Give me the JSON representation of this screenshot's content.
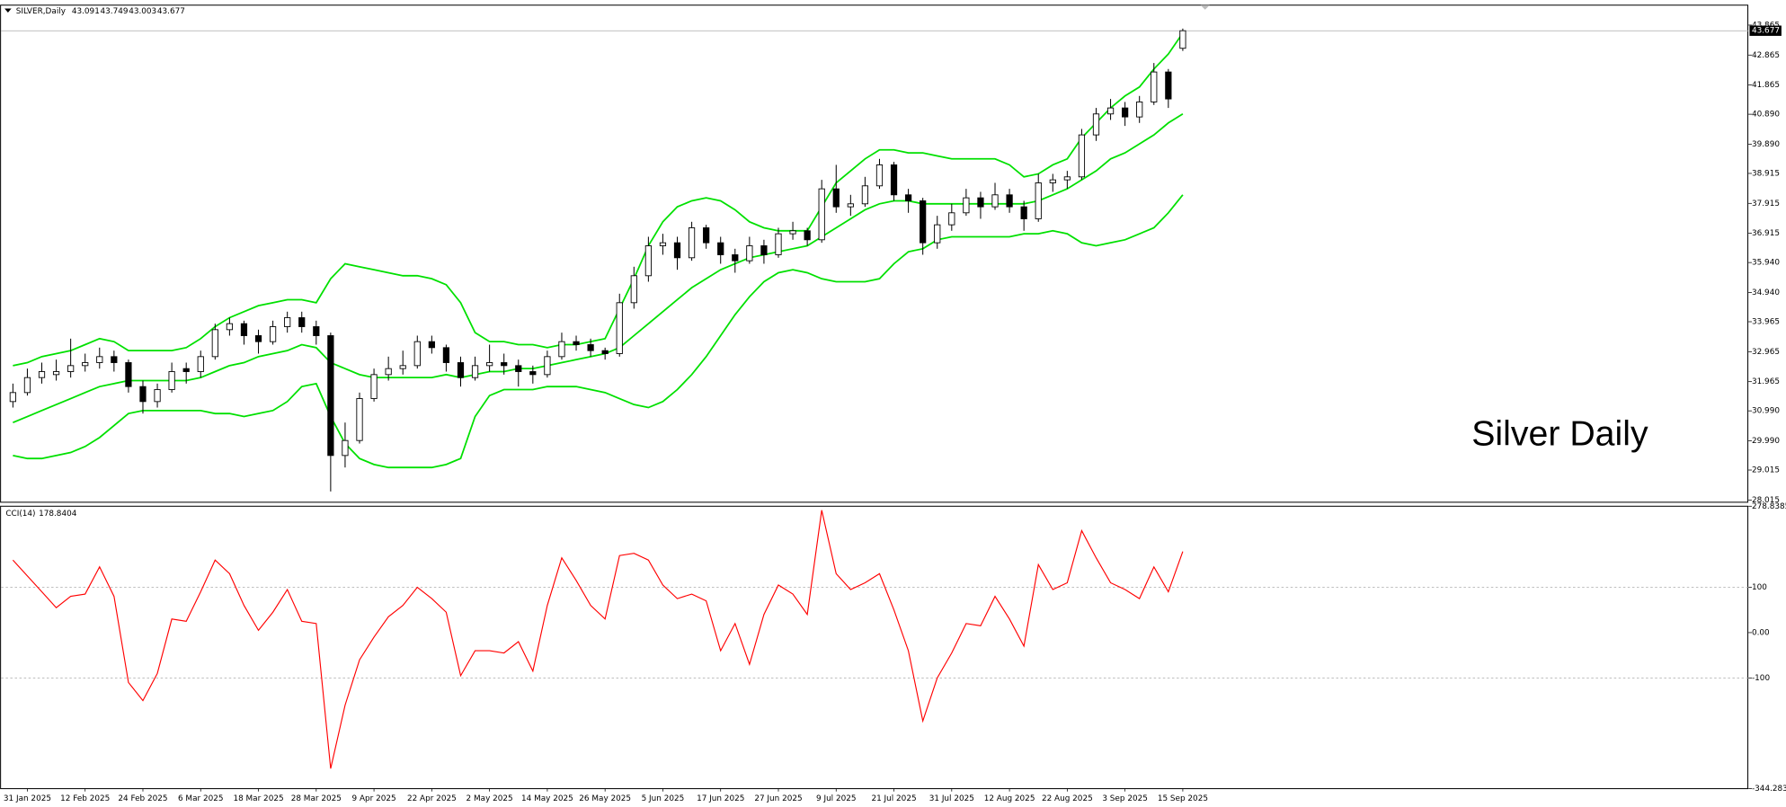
{
  "chart_data": [
    {
      "type": "candlestick",
      "symbol": "SILVER,Daily",
      "annotation": "Silver Daily",
      "up_color": "#ffffff",
      "down_color": "#000000",
      "ylim": [
        27.94,
        44.55
      ],
      "yticks": [
        28.015,
        29.015,
        {
          "value": 29.99,
          "label": "29.990"
        },
        {
          "value": 30.99,
          "label": "30.990"
        },
        31.965,
        32.965,
        33.965,
        {
          "value": 34.94,
          "label": "34.940"
        },
        {
          "value": 35.94,
          "label": "35.940"
        },
        36.915,
        37.915,
        38.915,
        {
          "value": 39.89,
          "label": "39.890"
        },
        {
          "value": 40.89,
          "label": "40.890"
        },
        41.865,
        42.865,
        43.865
      ],
      "categories": [
        null,
        "31 Jan 2025",
        null,
        null,
        null,
        "12 Feb 2025",
        null,
        null,
        null,
        "24 Feb 2025",
        null,
        null,
        null,
        "6 Mar 2025",
        null,
        null,
        null,
        "18 Mar 2025",
        null,
        null,
        null,
        "28 Mar 2025",
        null,
        null,
        null,
        "9 Apr 2025",
        null,
        null,
        null,
        "22 Apr 2025",
        null,
        null,
        null,
        "2 May 2025",
        null,
        null,
        null,
        "14 May 2025",
        null,
        null,
        null,
        "26 May 2025",
        null,
        null,
        null,
        "5 Jun 2025",
        null,
        null,
        null,
        "17 Jun 2025",
        null,
        null,
        null,
        "27 Jun 2025",
        null,
        null,
        null,
        "9 Jul 2025",
        null,
        null,
        null,
        "21 Jul 2025",
        null,
        null,
        null,
        "31 Jul 2025",
        null,
        null,
        null,
        "12 Aug 2025",
        null,
        null,
        null,
        "22 Aug 2025",
        null,
        null,
        null,
        "3 Sep 2025",
        null,
        null,
        null,
        "15 Sep 2025"
      ],
      "ohlc": [
        [
          31.3,
          31.9,
          31.1,
          31.6
        ],
        [
          31.6,
          32.4,
          31.5,
          32.1
        ],
        [
          32.1,
          32.6,
          31.9,
          32.3
        ],
        [
          32.2,
          32.7,
          32.0,
          32.3
        ],
        [
          32.3,
          33.4,
          32.1,
          32.5
        ],
        [
          32.5,
          32.9,
          32.3,
          32.6
        ],
        [
          32.6,
          33.1,
          32.4,
          32.8
        ],
        [
          32.8,
          33.0,
          32.3,
          32.6
        ],
        [
          32.6,
          32.7,
          31.6,
          31.8
        ],
        [
          31.8,
          32.0,
          30.9,
          31.3
        ],
        [
          31.3,
          31.9,
          31.1,
          31.7
        ],
        [
          31.7,
          32.6,
          31.6,
          32.3
        ],
        [
          32.4,
          32.6,
          31.9,
          32.3
        ],
        [
          32.3,
          33.0,
          32.1,
          32.8
        ],
        [
          32.8,
          33.9,
          32.7,
          33.7
        ],
        [
          33.7,
          34.1,
          33.5,
          33.9
        ],
        [
          33.9,
          34.0,
          33.2,
          33.5
        ],
        [
          33.5,
          33.7,
          32.9,
          33.3
        ],
        [
          33.3,
          34.0,
          33.2,
          33.8
        ],
        [
          33.8,
          34.3,
          33.6,
          34.1
        ],
        [
          34.1,
          34.3,
          33.6,
          33.8
        ],
        [
          33.8,
          34.0,
          33.2,
          33.5
        ],
        [
          33.5,
          33.6,
          28.3,
          29.5
        ],
        [
          29.5,
          30.6,
          29.1,
          30.0
        ],
        [
          30.0,
          31.6,
          29.9,
          31.4
        ],
        [
          31.4,
          32.4,
          31.3,
          32.2
        ],
        [
          32.2,
          32.8,
          32.0,
          32.4
        ],
        [
          32.4,
          33.0,
          32.2,
          32.5
        ],
        [
          32.5,
          33.5,
          32.4,
          33.3
        ],
        [
          33.3,
          33.5,
          32.9,
          33.1
        ],
        [
          33.1,
          33.2,
          32.3,
          32.6
        ],
        [
          32.6,
          32.8,
          31.8,
          32.1
        ],
        [
          32.1,
          32.8,
          32.0,
          32.5
        ],
        [
          32.5,
          33.2,
          32.3,
          32.6
        ],
        [
          32.6,
          32.9,
          32.2,
          32.5
        ],
        [
          32.5,
          32.7,
          31.8,
          32.3
        ],
        [
          32.3,
          32.5,
          31.9,
          32.2
        ],
        [
          32.2,
          33.0,
          32.1,
          32.8
        ],
        [
          32.8,
          33.6,
          32.7,
          33.3
        ],
        [
          33.3,
          33.5,
          33.0,
          33.2
        ],
        [
          33.2,
          33.4,
          32.8,
          33.0
        ],
        [
          33.0,
          33.1,
          32.7,
          32.9
        ],
        [
          32.9,
          34.9,
          32.8,
          34.6
        ],
        [
          34.6,
          35.8,
          34.4,
          35.5
        ],
        [
          35.5,
          36.8,
          35.3,
          36.5
        ],
        [
          36.5,
          36.9,
          36.2,
          36.6
        ],
        [
          36.6,
          36.8,
          35.7,
          36.1
        ],
        [
          36.1,
          37.3,
          36.0,
          37.1
        ],
        [
          37.1,
          37.2,
          36.4,
          36.6
        ],
        [
          36.6,
          36.8,
          35.9,
          36.2
        ],
        [
          36.2,
          36.4,
          35.6,
          36.0
        ],
        [
          36.0,
          36.8,
          35.9,
          36.5
        ],
        [
          36.5,
          36.7,
          35.9,
          36.2
        ],
        [
          36.2,
          37.1,
          36.1,
          36.9
        ],
        [
          36.9,
          37.3,
          36.7,
          37.0
        ],
        [
          37.0,
          37.1,
          36.5,
          36.7
        ],
        [
          36.7,
          38.7,
          36.6,
          38.4
        ],
        [
          38.4,
          39.2,
          37.6,
          37.8
        ],
        [
          37.8,
          38.2,
          37.5,
          37.9
        ],
        [
          37.9,
          38.8,
          37.8,
          38.5
        ],
        [
          38.5,
          39.4,
          38.4,
          39.2
        ],
        [
          39.2,
          39.3,
          38.0,
          38.2
        ],
        [
          38.2,
          38.4,
          37.6,
          38.0
        ],
        [
          38.0,
          38.1,
          36.2,
          36.6
        ],
        [
          36.6,
          37.5,
          36.4,
          37.2
        ],
        [
          37.2,
          37.9,
          37.0,
          37.6
        ],
        [
          37.6,
          38.4,
          37.5,
          38.1
        ],
        [
          38.1,
          38.3,
          37.4,
          37.8
        ],
        [
          37.8,
          38.6,
          37.7,
          38.2
        ],
        [
          38.2,
          38.4,
          37.6,
          37.8
        ],
        [
          37.8,
          38.0,
          37.0,
          37.4
        ],
        [
          37.4,
          38.9,
          37.3,
          38.6
        ],
        [
          38.6,
          38.9,
          38.3,
          38.7
        ],
        [
          38.7,
          39.0,
          38.4,
          38.8
        ],
        [
          38.8,
          40.4,
          38.7,
          40.2
        ],
        [
          40.2,
          41.1,
          40.0,
          40.9
        ],
        [
          40.9,
          41.4,
          40.7,
          41.1
        ],
        [
          41.1,
          41.3,
          40.5,
          40.8
        ],
        [
          40.8,
          41.5,
          40.6,
          41.3
        ],
        [
          41.3,
          42.6,
          41.2,
          42.3
        ],
        [
          42.3,
          42.4,
          41.1,
          41.4
        ],
        [
          43.091,
          43.749,
          43.003,
          43.677
        ]
      ],
      "bands": {
        "color": "#00e000",
        "upper": [
          32.5,
          32.6,
          32.8,
          32.9,
          33.0,
          33.2,
          33.4,
          33.3,
          33.0,
          33.0,
          33.0,
          33.0,
          33.1,
          33.4,
          33.8,
          34.1,
          34.3,
          34.5,
          34.6,
          34.7,
          34.7,
          34.6,
          35.4,
          35.9,
          35.8,
          35.7,
          35.6,
          35.5,
          35.5,
          35.4,
          35.2,
          34.6,
          33.6,
          33.3,
          33.3,
          33.2,
          33.2,
          33.1,
          33.2,
          33.2,
          33.3,
          33.4,
          34.4,
          35.4,
          36.5,
          37.3,
          37.8,
          38.0,
          38.1,
          38.0,
          37.7,
          37.3,
          37.1,
          37.0,
          37.0,
          37.0,
          37.8,
          38.6,
          39.0,
          39.4,
          39.7,
          39.7,
          39.6,
          39.6,
          39.5,
          39.4,
          39.4,
          39.4,
          39.4,
          39.2,
          38.8,
          38.9,
          39.2,
          39.4,
          40.1,
          40.6,
          41.1,
          41.5,
          41.8,
          42.4,
          42.9,
          43.6
        ],
        "middle": [
          30.6,
          30.8,
          31.0,
          31.2,
          31.4,
          31.6,
          31.8,
          31.9,
          32.0,
          32.0,
          32.0,
          32.0,
          32.0,
          32.1,
          32.3,
          32.5,
          32.6,
          32.8,
          32.9,
          33.0,
          33.2,
          33.1,
          32.6,
          32.4,
          32.2,
          32.1,
          32.1,
          32.1,
          32.1,
          32.1,
          32.2,
          32.1,
          32.2,
          32.3,
          32.3,
          32.4,
          32.4,
          32.5,
          32.6,
          32.7,
          32.8,
          32.9,
          33.1,
          33.5,
          33.9,
          34.3,
          34.7,
          35.1,
          35.4,
          35.7,
          35.9,
          36.1,
          36.2,
          36.3,
          36.4,
          36.5,
          36.8,
          37.1,
          37.4,
          37.7,
          37.9,
          38.0,
          38.0,
          37.9,
          37.9,
          37.9,
          37.9,
          37.9,
          37.9,
          37.9,
          37.9,
          38.0,
          38.2,
          38.4,
          38.7,
          39.0,
          39.4,
          39.6,
          39.9,
          40.2,
          40.6,
          40.9
        ],
        "lower": [
          29.5,
          29.4,
          29.4,
          29.5,
          29.6,
          29.8,
          30.1,
          30.5,
          30.9,
          31.0,
          31.0,
          31.0,
          31.0,
          31.0,
          30.9,
          30.9,
          30.8,
          30.9,
          31.0,
          31.3,
          31.8,
          31.9,
          30.8,
          29.9,
          29.4,
          29.2,
          29.1,
          29.1,
          29.1,
          29.1,
          29.2,
          29.4,
          30.8,
          31.5,
          31.7,
          31.7,
          31.7,
          31.8,
          31.8,
          31.8,
          31.7,
          31.6,
          31.4,
          31.2,
          31.1,
          31.3,
          31.7,
          32.2,
          32.8,
          33.5,
          34.2,
          34.8,
          35.3,
          35.6,
          35.7,
          35.6,
          35.4,
          35.3,
          35.3,
          35.3,
          35.4,
          35.9,
          36.3,
          36.4,
          36.7,
          36.8,
          36.8,
          36.8,
          36.8,
          36.8,
          36.9,
          36.9,
          37.0,
          36.9,
          36.6,
          36.5,
          36.6,
          36.7,
          36.9,
          37.1,
          37.6,
          38.2
        ]
      }
    },
    {
      "type": "line",
      "title": "CCI(14)",
      "color": "#ff0000",
      "ylim": [
        -344.283,
        278.8385
      ],
      "yticks": [
        278.8385,
        100,
        {
          "value": 0,
          "label": "0.00"
        },
        -100,
        -344.283
      ],
      "levels": [
        100,
        -100
      ],
      "values": [
        160,
        125,
        90,
        55,
        80,
        85,
        145,
        80,
        -110,
        -150,
        -90,
        30,
        25,
        90,
        160,
        130,
        60,
        5,
        45,
        95,
        25,
        20,
        -300,
        -160,
        -60,
        -10,
        35,
        60,
        100,
        75,
        45,
        -95,
        -40,
        -40,
        -45,
        -20,
        -85,
        60,
        165,
        115,
        60,
        30,
        170,
        175,
        160,
        105,
        75,
        85,
        70,
        -40,
        20,
        -70,
        40,
        105,
        85,
        40,
        270,
        130,
        95,
        110,
        130,
        50,
        -40,
        -195,
        -100,
        -45,
        20,
        15,
        80,
        30,
        -30,
        150,
        95,
        110,
        225,
        165,
        110,
        95,
        75,
        145,
        90,
        178.8404
      ]
    }
  ]
}
